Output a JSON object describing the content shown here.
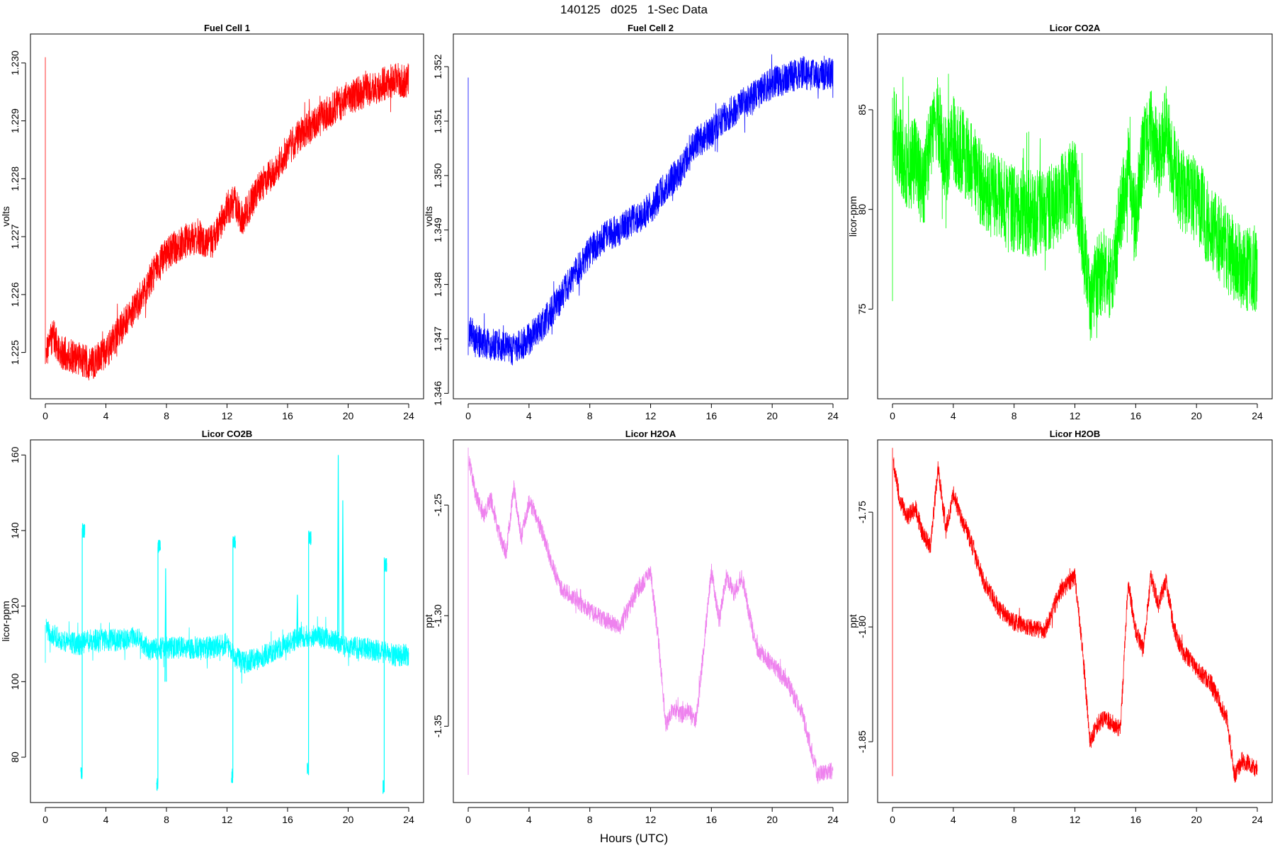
{
  "figure": {
    "title": "140125   d025   1-Sec Data",
    "xlabel": "Hours (UTC)"
  },
  "chart_data": [
    {
      "type": "line",
      "title": "Fuel Cell 1",
      "ylabel": "volts",
      "color": "#ff0000",
      "xlim": [
        0,
        24
      ],
      "ylim": [
        1.2242,
        1.2305
      ],
      "xticks": [
        0,
        4,
        8,
        12,
        16,
        20,
        24
      ],
      "yticks": [
        1.225,
        1.226,
        1.227,
        1.228,
        1.229,
        1.23
      ],
      "ytick_labels": [
        "1.225",
        "1.226",
        "1.227",
        "1.228",
        "1.229",
        "1.230"
      ],
      "noise": 0.0003,
      "spike": [
        1.2248,
        1.2301
      ],
      "x": [
        0.05,
        0.5,
        1,
        2,
        3,
        4,
        5,
        6,
        7,
        8,
        9,
        10,
        11,
        12,
        12.5,
        13,
        14,
        15,
        16,
        17,
        18,
        19,
        20,
        21,
        22,
        23,
        24
      ],
      "y_mid": [
        1.225,
        1.2253,
        1.225,
        1.2249,
        1.2248,
        1.225,
        1.2254,
        1.2258,
        1.2263,
        1.2267,
        1.2269,
        1.227,
        1.2269,
        1.2275,
        1.2276,
        1.2273,
        1.2278,
        1.2281,
        1.2285,
        1.2288,
        1.229,
        1.2292,
        1.2294,
        1.2295,
        1.2296,
        1.2297,
        1.2297
      ]
    },
    {
      "type": "line",
      "title": "Fuel Cell 2",
      "ylabel": "volts",
      "color": "#0000ff",
      "xlim": [
        0,
        24
      ],
      "ylim": [
        1.3459,
        1.3526
      ],
      "xticks": [
        0,
        4,
        8,
        12,
        16,
        20,
        24
      ],
      "yticks": [
        1.346,
        1.347,
        1.348,
        1.349,
        1.35,
        1.351,
        1.352
      ],
      "ytick_labels": [
        "1.346",
        "1.347",
        "1.348",
        "1.349",
        "1.350",
        "1.351",
        "1.352"
      ],
      "noise": 0.0003,
      "spike": [
        1.3467,
        1.3518
      ],
      "x": [
        0.05,
        0.5,
        1,
        2,
        3,
        4,
        5,
        6,
        7,
        8,
        9,
        10,
        11,
        12,
        13,
        14,
        15,
        16,
        17,
        18,
        19,
        20,
        21,
        22,
        23,
        24
      ],
      "y_mid": [
        1.3472,
        1.347,
        1.3469,
        1.3469,
        1.3468,
        1.347,
        1.3473,
        1.3477,
        1.3482,
        1.3486,
        1.3489,
        1.349,
        1.3492,
        1.3494,
        1.3498,
        1.3501,
        1.3506,
        1.3508,
        1.3511,
        1.3513,
        1.3515,
        1.3517,
        1.3518,
        1.3519,
        1.3518,
        1.3519
      ]
    },
    {
      "type": "line",
      "title": "Licor CO2A",
      "ylabel": "licor-ppm",
      "color": "#00ff00",
      "xlim": [
        0,
        24
      ],
      "ylim": [
        70.5,
        88.8
      ],
      "xticks": [
        0,
        4,
        8,
        12,
        16,
        20,
        24
      ],
      "yticks": [
        75,
        80,
        85
      ],
      "ytick_labels": [
        "75",
        "80",
        "85"
      ],
      "noise": 2.2,
      "spike": [
        75.4,
        85.6
      ],
      "x": [
        0,
        0.5,
        1,
        1.5,
        2,
        2.5,
        3,
        3.5,
        4,
        5,
        6,
        7,
        8,
        9,
        10,
        11,
        12,
        12.5,
        13,
        13.5,
        14,
        14.5,
        15,
        15.5,
        16,
        16.5,
        17,
        17.5,
        18,
        18.5,
        19,
        20,
        21,
        22,
        23,
        24
      ],
      "y_mid": [
        84.5,
        83.0,
        82.0,
        82.5,
        81.0,
        83.5,
        84.5,
        82.5,
        83.5,
        82.5,
        81.0,
        80.5,
        80.0,
        79.8,
        79.8,
        80.5,
        81.5,
        78.5,
        75.5,
        76.5,
        77.0,
        76.5,
        80.0,
        82.0,
        79.5,
        83.0,
        84.0,
        82.5,
        84.0,
        82.0,
        81.0,
        80.5,
        79.0,
        78.0,
        77.0,
        77.0
      ]
    },
    {
      "type": "line",
      "title": "Licor CO2B",
      "ylabel": "licor-ppm",
      "color": "#00ffff",
      "xlim": [
        0,
        24
      ],
      "ylim": [
        68,
        164
      ],
      "xticks": [
        0,
        4,
        8,
        12,
        16,
        20,
        24
      ],
      "yticks": [
        80,
        100,
        120,
        140,
        160
      ],
      "ytick_labels": [
        "80",
        "100",
        "120",
        "140",
        "160"
      ],
      "noise": 3.0,
      "spike": [
        105,
        115
      ],
      "x": [
        0.05,
        1,
        2,
        2.3,
        3,
        4,
        5,
        6,
        7,
        7.5,
        8,
        9,
        10,
        11,
        12,
        12.5,
        13,
        14,
        15,
        16,
        17,
        18,
        19,
        20,
        21,
        22,
        23,
        24
      ],
      "y_mid": [
        114,
        111,
        110,
        110,
        111,
        111,
        111,
        112,
        108,
        109,
        109,
        109,
        109,
        109,
        110,
        107,
        105,
        106,
        108,
        110,
        112,
        112,
        111,
        109,
        109,
        108,
        107,
        107
      ],
      "excursions": [
        {
          "start": 2.35,
          "end": 2.6,
          "low": 76,
          "high": 140
        },
        {
          "start": 7.35,
          "end": 7.6,
          "low": 73,
          "high": 136
        },
        {
          "start": 12.3,
          "end": 12.55,
          "low": 75,
          "high": 137
        },
        {
          "start": 17.3,
          "end": 17.55,
          "low": 77,
          "high": 138
        },
        {
          "start": 22.3,
          "end": 22.55,
          "low": 72,
          "high": 131
        }
      ],
      "peaks": [
        {
          "x": 19.3,
          "high": 160,
          "low": 112
        },
        {
          "x": 19.6,
          "high": 148,
          "low": 110
        },
        {
          "x": 7.9,
          "high": 130,
          "low": 100
        },
        {
          "x": 16.6,
          "high": 123,
          "low": 110
        }
      ]
    },
    {
      "type": "line",
      "title": "Licor H2OA",
      "ylabel": "ppt",
      "color": "#ee82ee",
      "xlim": [
        0,
        24
      ],
      "ylim": [
        -1.3845,
        -1.2205
      ],
      "xticks": [
        0,
        4,
        8,
        12,
        16,
        20,
        24
      ],
      "yticks": [
        -1.35,
        -1.3,
        -1.25
      ],
      "ytick_labels": [
        "-1.35",
        "-1.30",
        "-1.25"
      ],
      "noise": 0.004,
      "spike": [
        -1.372,
        -1.224
      ],
      "x": [
        0.05,
        0.5,
        1,
        1.5,
        2,
        2.5,
        3,
        3.5,
        4,
        4.5,
        5,
        6,
        7,
        8,
        9,
        10,
        11,
        12,
        12.5,
        13,
        13.5,
        14,
        14.5,
        15,
        16,
        16.5,
        17,
        17.5,
        18,
        18.5,
        19,
        20,
        21,
        22,
        23,
        24
      ],
      "y_mid": [
        -1.23,
        -1.245,
        -1.255,
        -1.247,
        -1.262,
        -1.272,
        -1.242,
        -1.265,
        -1.248,
        -1.255,
        -1.265,
        -1.287,
        -1.292,
        -1.298,
        -1.302,
        -1.305,
        -1.29,
        -1.28,
        -1.31,
        -1.35,
        -1.342,
        -1.345,
        -1.343,
        -1.348,
        -1.28,
        -1.302,
        -1.282,
        -1.29,
        -1.282,
        -1.3,
        -1.315,
        -1.322,
        -1.33,
        -1.345,
        -1.372,
        -1.37
      ]
    },
    {
      "type": "line",
      "title": "Licor H2OB",
      "ylabel": "ppt",
      "color": "#ff0000",
      "xlim": [
        0,
        24
      ],
      "ylim": [
        -1.8765,
        -1.7185
      ],
      "xticks": [
        0,
        4,
        8,
        12,
        16,
        20,
        24
      ],
      "yticks": [
        -1.85,
        -1.8,
        -1.75
      ],
      "ytick_labels": [
        "-1.85",
        "-1.80",
        "-1.75"
      ],
      "noise": 0.004,
      "spike": [
        -1.865,
        -1.722
      ],
      "x": [
        0.05,
        0.5,
        1,
        1.5,
        2,
        2.5,
        3,
        3.5,
        4,
        4.5,
        5,
        6,
        7,
        8,
        9,
        10,
        11,
        12,
        12.5,
        13,
        13.5,
        14,
        14.5,
        15,
        15.5,
        16,
        16.5,
        17,
        17.5,
        18,
        18.5,
        19,
        20,
        21,
        22,
        22.5,
        23,
        24
      ],
      "y_mid": [
        -1.728,
        -1.745,
        -1.752,
        -1.748,
        -1.76,
        -1.765,
        -1.73,
        -1.758,
        -1.742,
        -1.752,
        -1.76,
        -1.78,
        -1.792,
        -1.798,
        -1.8,
        -1.802,
        -1.785,
        -1.778,
        -1.81,
        -1.85,
        -1.842,
        -1.84,
        -1.842,
        -1.845,
        -1.78,
        -1.802,
        -1.81,
        -1.778,
        -1.79,
        -1.78,
        -1.8,
        -1.81,
        -1.818,
        -1.825,
        -1.84,
        -1.865,
        -1.858,
        -1.862
      ]
    }
  ]
}
